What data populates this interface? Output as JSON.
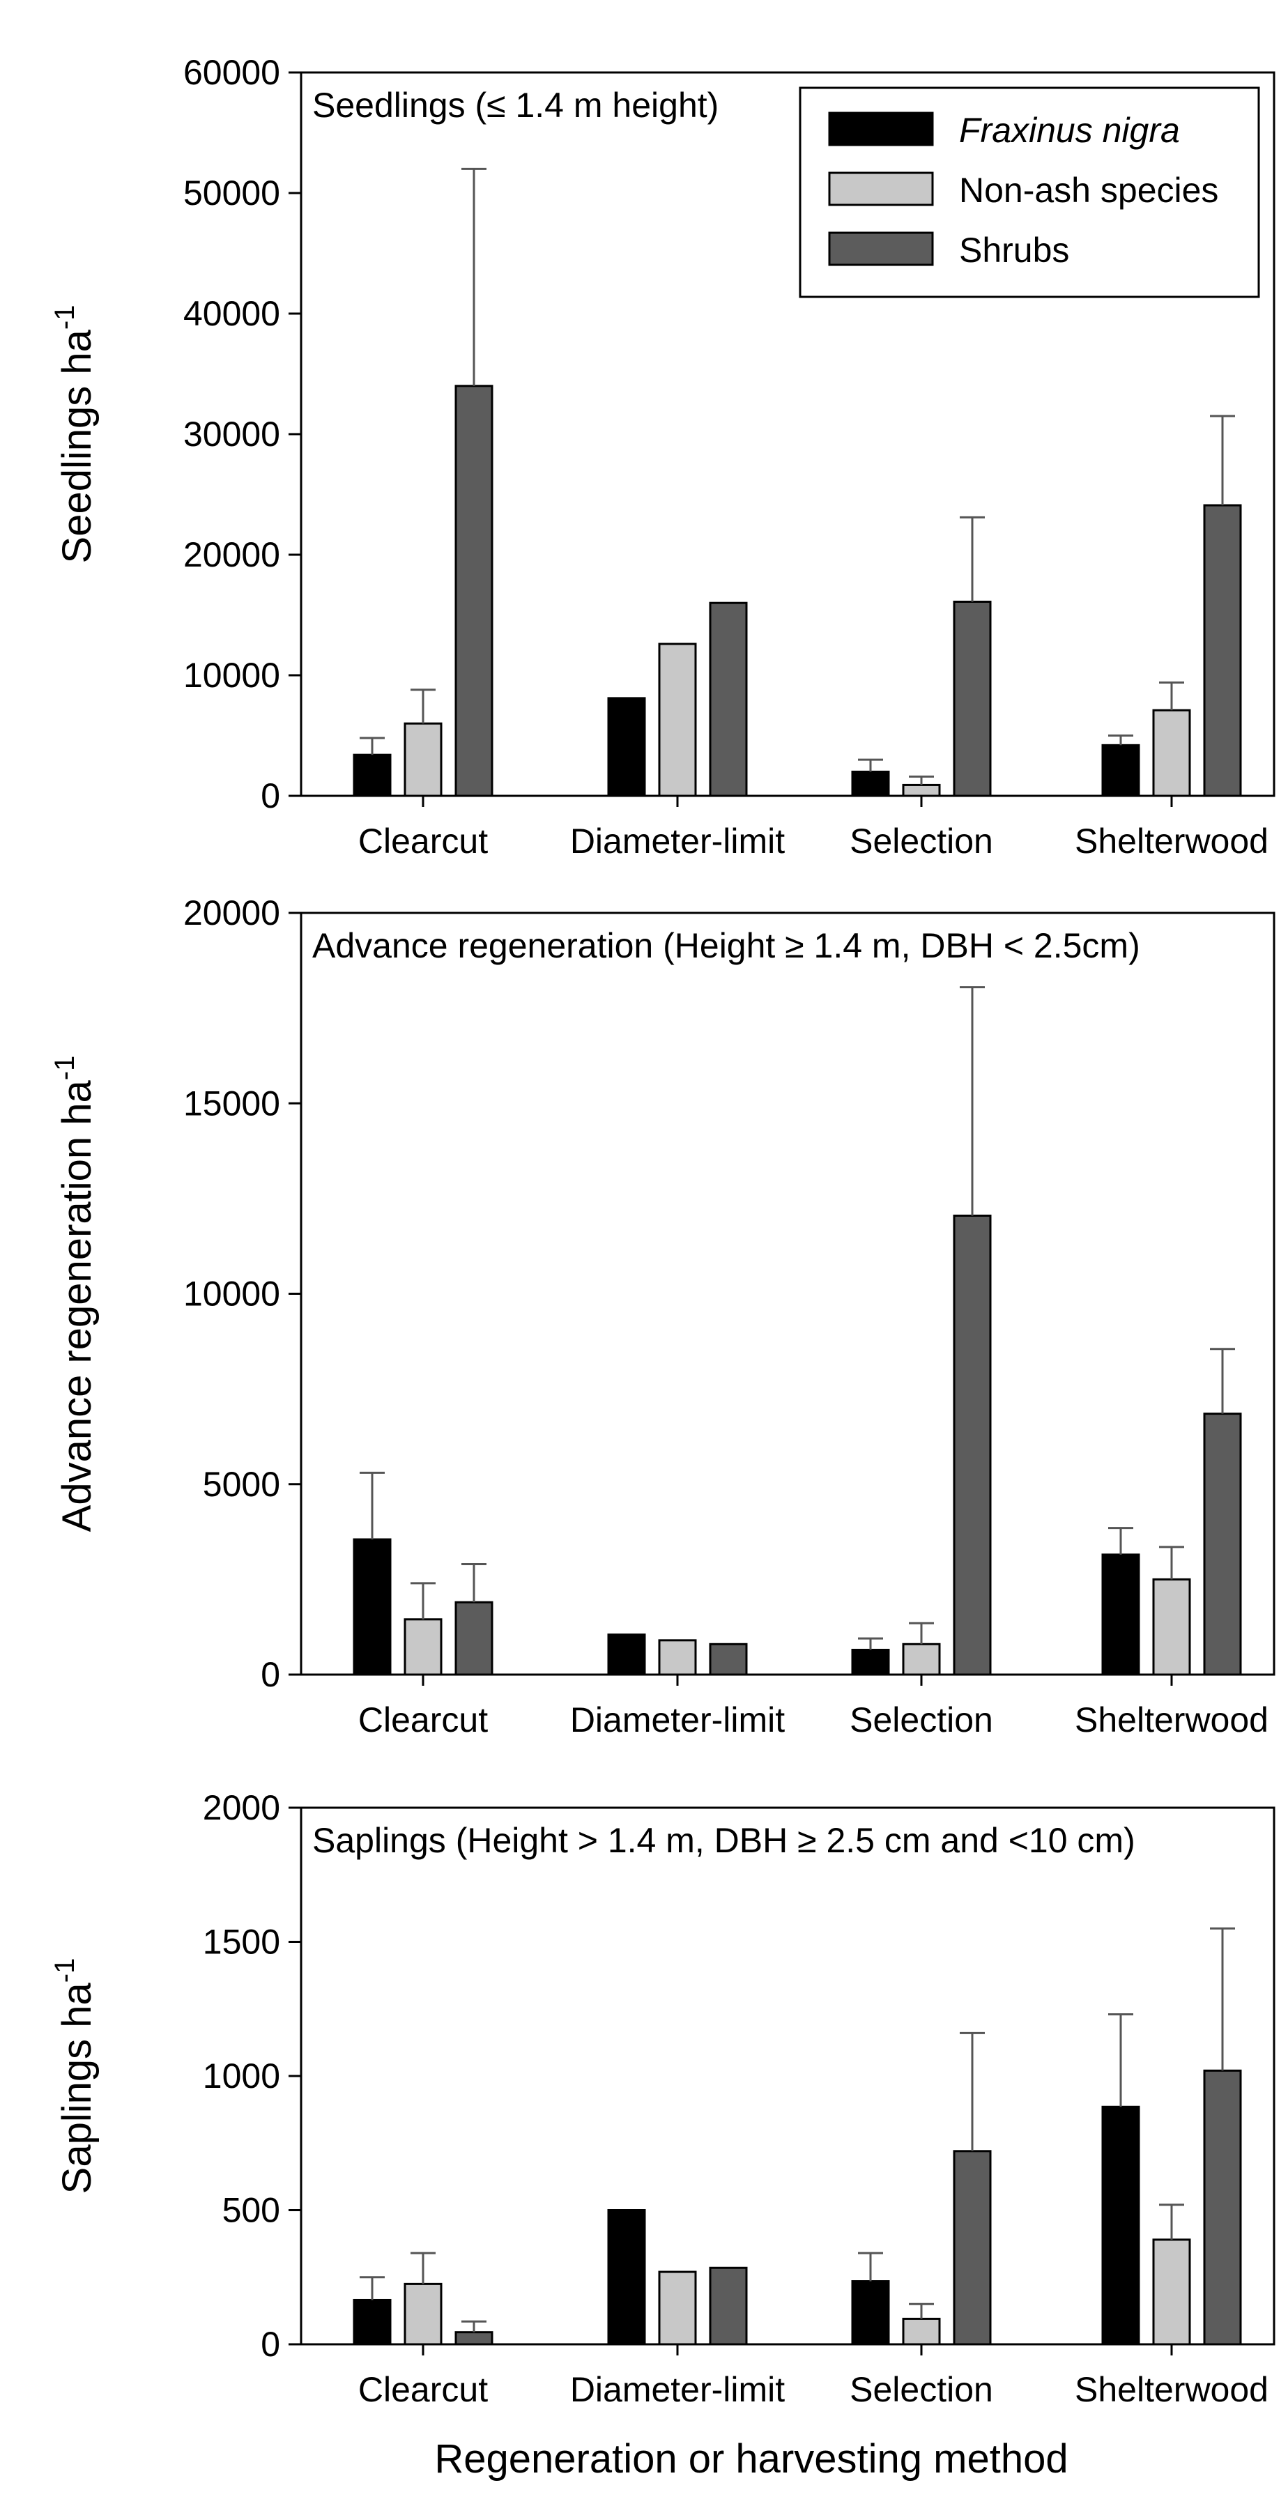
{
  "figure": {
    "xlabel": "Regeneration or harvesting method"
  },
  "legend": {
    "entries": [
      {
        "label": "Fraxinus nigra",
        "color": "#000000",
        "italic": true
      },
      {
        "label": "Non-ash species",
        "color": "#c8c8c8",
        "italic": false
      },
      {
        "label": "Shrubs",
        "color": "#5c5c5c",
        "italic": false
      }
    ]
  },
  "chart_data": [
    {
      "type": "bar",
      "title": "Seedlings (≤ 1.4 m height)",
      "ylabel": "Seedlings ha",
      "ylabel_superscript": "-1",
      "ylim": [
        0,
        60000
      ],
      "yticks": [
        "0",
        "10000",
        "20000",
        "30000",
        "40000",
        "50000",
        "60000"
      ],
      "categories": [
        "Clearcut",
        "Diameter-limit",
        "Selection",
        "Shelterwood"
      ],
      "series": [
        {
          "name": "Fraxinus nigra",
          "values": [
            3400,
            8100,
            2000,
            4200
          ],
          "errors": [
            1400,
            0,
            1000,
            800
          ]
        },
        {
          "name": "Non-ash species",
          "values": [
            6000,
            12600,
            900,
            7100
          ],
          "errors": [
            2800,
            0,
            700,
            2300
          ]
        },
        {
          "name": "Shrubs",
          "values": [
            34000,
            16000,
            16100,
            24100
          ],
          "errors": [
            18000,
            0,
            7000,
            7400
          ]
        }
      ]
    },
    {
      "type": "bar",
      "title": "Advance regeneration (Height ≥ 1.4 m, DBH < 2.5cm)",
      "ylabel": "Advance regeneration ha",
      "ylabel_superscript": "-1",
      "ylim": [
        0,
        20000
      ],
      "yticks": [
        "0",
        "5000",
        "10000",
        "15000",
        "20000"
      ],
      "categories": [
        "Clearcut",
        "Diameter-limit",
        "Selection",
        "Shelterwood"
      ],
      "series": [
        {
          "name": "Fraxinus nigra",
          "values": [
            3550,
            1050,
            650,
            3150
          ],
          "errors": [
            1750,
            0,
            300,
            700
          ]
        },
        {
          "name": "Non-ash species",
          "values": [
            1450,
            900,
            800,
            2500
          ],
          "errors": [
            950,
            0,
            550,
            850
          ]
        },
        {
          "name": "Shrubs",
          "values": [
            1900,
            800,
            12050,
            6850
          ],
          "errors": [
            1000,
            0,
            6000,
            1700
          ]
        }
      ]
    },
    {
      "type": "bar",
      "title": "Saplings (Height > 1.4 m, DBH ≥ 2.5 cm and <10 cm)",
      "ylabel": "Saplings ha",
      "ylabel_superscript": "-1",
      "ylim": [
        0,
        2000
      ],
      "yticks": [
        "0",
        "500",
        "1000",
        "1500",
        "2000"
      ],
      "categories": [
        "Clearcut",
        "Diameter-limit",
        "Selection",
        "Shelterwood"
      ],
      "series": [
        {
          "name": "Fraxinus nigra",
          "values": [
            165,
            500,
            235,
            885
          ],
          "errors": [
            85,
            0,
            105,
            345
          ]
        },
        {
          "name": "Non-ash species",
          "values": [
            225,
            270,
            95,
            390
          ],
          "errors": [
            115,
            0,
            55,
            130
          ]
        },
        {
          "name": "Shrubs",
          "values": [
            45,
            285,
            720,
            1020
          ],
          "errors": [
            40,
            0,
            440,
            530
          ]
        }
      ]
    }
  ]
}
